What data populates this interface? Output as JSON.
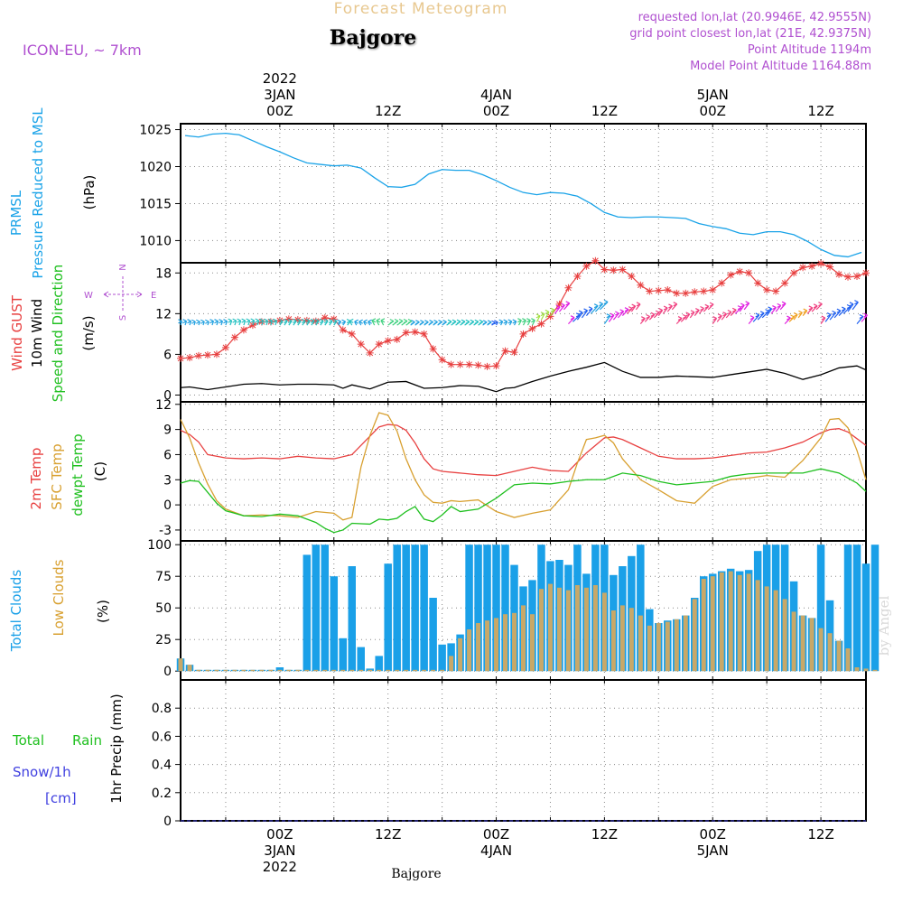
{
  "header": {
    "product": "Forecast Meteogram",
    "location": "Bajgore",
    "model": "ICON-EU, ~ 7km",
    "requested": "requested lon,lat (20.9946E, 42.9555N)",
    "grid_point": "grid point closest lon,lat (21E, 42.9375N)",
    "point_altitude": "Point Altitude 1194m",
    "model_altitude": "Model Point Altitude 1164.88m"
  },
  "footer": {
    "location": "Bajgore",
    "watermark": "by Angel"
  },
  "time_axis": {
    "top_labels": [
      {
        "line1": "2022",
        "line2": "3JAN",
        "line3": "00Z",
        "hour": 0
      },
      {
        "line1": "",
        "line2": "",
        "line3": "12Z",
        "hour": 12
      },
      {
        "line1": "",
        "line2": "4JAN",
        "line3": "00Z",
        "hour": 24
      },
      {
        "line1": "",
        "line2": "",
        "line3": "12Z",
        "hour": 36
      },
      {
        "line1": "",
        "line2": "5JAN",
        "line3": "00Z",
        "hour": 48
      },
      {
        "line1": "",
        "line2": "",
        "line3": "12Z",
        "hour": 60
      }
    ],
    "bottom_labels": [
      {
        "line1": "00Z",
        "line2": "3JAN",
        "line3": "2022",
        "hour": 0
      },
      {
        "line1": "12Z",
        "line2": "",
        "line3": "",
        "hour": 12
      },
      {
        "line1": "00Z",
        "line2": "4JAN",
        "line3": "",
        "hour": 24
      },
      {
        "line1": "12Z",
        "line2": "",
        "line3": "",
        "hour": 36
      },
      {
        "line1": "00Z",
        "line2": "5JAN",
        "line3": "",
        "hour": 48
      },
      {
        "line1": "12Z",
        "line2": "",
        "line3": "",
        "hour": 60
      }
    ],
    "range_hours": [
      -11,
      65
    ]
  },
  "panel_labels": {
    "pressure": {
      "l1": "PRMSL",
      "l2": "Pressure Reduced to MSL",
      "unit": "(hPa)"
    },
    "wind": {
      "l1": "Wind GUST",
      "l2": "10m Wind",
      "l3": "Speed and Direction",
      "unit": "(m/s)",
      "compass_n": "N",
      "compass_s": "S",
      "compass_w": "W",
      "compass_e": "E"
    },
    "temp": {
      "l1": "2m Temp",
      "l2": "SFC Temp",
      "l3": "dewpt Temp",
      "unit": "(C)"
    },
    "clouds": {
      "l1": "Total Clouds",
      "l2": "Low Clouds",
      "unit": "(%)"
    },
    "precip": {
      "l1": "Total",
      "l1b": "Rain",
      "l2": "Snow/1h",
      "l3": "[cm]",
      "unit": "1hr Precip (mm)"
    }
  },
  "colors": {
    "pressure": "#1aa3e8",
    "gust": "#e84040",
    "wind": "#000000",
    "temp2m": "#e84040",
    "sfc": "#d8a030",
    "dewpt": "#20c020",
    "total_clouds": "#1aa0e8",
    "low_clouds": "#c8a868",
    "rain": "#20c020",
    "snow": "#4040e0",
    "title": "#e8c890",
    "info": "#b050d0"
  },
  "chart_data": [
    {
      "type": "line",
      "title": "",
      "ylabel": "PRMSL Pressure Reduced to MSL (hPa)",
      "ylim": [
        1007,
        1025.8
      ],
      "yticks": [
        1010,
        1015,
        1020,
        1025
      ],
      "series": [
        {
          "name": "PRMSL",
          "x": [
            -10.5,
            -9,
            -7.5,
            -6,
            -4.5,
            -3,
            -1.5,
            0,
            1.5,
            3,
            4.5,
            6,
            7.5,
            9,
            10.5,
            12,
            13.5,
            15,
            16.5,
            18,
            19.5,
            21,
            22.5,
            24,
            25.5,
            27,
            28.5,
            30,
            31.5,
            33,
            34.5,
            36,
            37.5,
            39,
            40.5,
            42,
            43.5,
            45,
            46.5,
            48,
            49.5,
            51,
            52.5,
            54,
            55.5,
            57,
            58.5,
            60,
            61.5,
            63,
            64.5
          ],
          "values": [
            1024.2,
            1024.0,
            1024.4,
            1024.5,
            1024.3,
            1023.5,
            1022.7,
            1022.0,
            1021.2,
            1020.5,
            1020.3,
            1020.1,
            1020.2,
            1019.8,
            1018.5,
            1017.3,
            1017.2,
            1017.6,
            1019.0,
            1019.6,
            1019.5,
            1019.5,
            1018.9,
            1018.1,
            1017.2,
            1016.5,
            1016.2,
            1016.5,
            1016.4,
            1016.0,
            1015.0,
            1013.8,
            1013.2,
            1013.1,
            1013.2,
            1013.2,
            1013.1,
            1013.0,
            1012.3,
            1011.9,
            1011.6,
            1011.0,
            1010.8,
            1011.2,
            1011.2,
            1010.8,
            1009.9,
            1008.8,
            1008.0,
            1007.8,
            1008.4
          ]
        }
      ]
    },
    {
      "type": "line",
      "title": "",
      "ylabel": "Wind GUST / 10m Wind Speed and Direction (m/s)",
      "ylim": [
        -1,
        19.5
      ],
      "yticks": [
        0,
        6,
        12,
        18
      ],
      "series": [
        {
          "name": "Wind GUST",
          "x": [
            -11,
            -10,
            -9,
            -8,
            -7,
            -6,
            -5,
            -4,
            -3,
            -2,
            -1,
            0,
            1,
            2,
            3,
            4,
            5,
            6,
            7,
            8,
            9,
            10,
            11,
            12,
            13,
            14,
            15,
            16,
            17,
            18,
            19,
            20,
            21,
            22,
            23,
            24,
            25,
            26,
            27,
            28,
            29,
            30,
            31,
            32,
            33,
            34,
            35,
            36,
            37,
            38,
            39,
            40,
            41,
            42,
            43,
            44,
            45,
            46,
            47,
            48,
            49,
            50,
            51,
            52,
            53,
            54,
            55,
            56,
            57,
            58,
            59,
            60,
            61,
            62,
            63,
            64,
            65
          ],
          "values": [
            5.4,
            5.5,
            5.8,
            5.9,
            6.0,
            7.0,
            8.5,
            9.6,
            10.3,
            10.8,
            10.8,
            11.0,
            11.2,
            11.1,
            11.0,
            10.9,
            11.4,
            11.2,
            9.6,
            9.0,
            7.5,
            6.2,
            7.5,
            8.0,
            8.2,
            9.2,
            9.3,
            9.0,
            6.8,
            5.2,
            4.5,
            4.5,
            4.5,
            4.4,
            4.2,
            4.3,
            6.5,
            6.3,
            9.0,
            9.8,
            10.5,
            11.6,
            13.4,
            15.8,
            17.5,
            19.0,
            19.8,
            18.5,
            18.4,
            18.5,
            17.5,
            16.2,
            15.3,
            15.4,
            15.5,
            15.0,
            15.0,
            15.2,
            15.3,
            15.5,
            16.5,
            17.7,
            18.2,
            18.0,
            16.5,
            15.5,
            15.3,
            16.5,
            18.0,
            18.8,
            19.0,
            19.4,
            18.9,
            17.8,
            17.4,
            17.5,
            18.0
          ]
        },
        {
          "name": "10m Wind",
          "x": [
            -11,
            -10,
            -8,
            -6,
            -4,
            -2,
            0,
            2,
            4,
            6,
            7,
            8,
            10,
            12,
            14,
            16,
            18,
            20,
            22,
            23,
            24,
            25,
            26,
            28,
            30,
            32,
            34,
            36,
            38,
            40,
            42,
            44,
            46,
            48,
            50,
            52,
            54,
            56,
            58,
            60,
            62,
            64,
            65
          ],
          "values": [
            1.1,
            1.2,
            0.8,
            1.2,
            1.6,
            1.7,
            1.5,
            1.6,
            1.6,
            1.5,
            1.0,
            1.5,
            0.9,
            1.9,
            2.0,
            1.0,
            1.1,
            1.4,
            1.3,
            0.9,
            0.5,
            1.0,
            1.1,
            2.0,
            2.8,
            3.5,
            4.1,
            4.8,
            3.5,
            2.6,
            2.6,
            2.8,
            2.7,
            2.6,
            3.0,
            3.4,
            3.8,
            3.2,
            2.3,
            3.0,
            4.0,
            4.3,
            3.7
          ]
        }
      ]
    },
    {
      "type": "line",
      "title": "",
      "ylabel": "2m Temp / SFC Temp / dewpt Temp (C)",
      "ylim": [
        -4.3,
        12.3
      ],
      "yticks": [
        -3,
        0,
        3,
        6,
        9,
        12
      ],
      "series": [
        {
          "name": "2m Temp",
          "x": [
            -11,
            -10,
            -9,
            -8,
            -6,
            -4,
            -2,
            0,
            2,
            4,
            6,
            8,
            10,
            11,
            12,
            13,
            14,
            15,
            16,
            17,
            18,
            20,
            22,
            24,
            26,
            28,
            30,
            32,
            34,
            36,
            37,
            38,
            40,
            42,
            44,
            46,
            48,
            50,
            52,
            54,
            56,
            58,
            60,
            61,
            62,
            63,
            64,
            65
          ],
          "values": [
            8.9,
            8.4,
            7.5,
            6.0,
            5.6,
            5.5,
            5.6,
            5.5,
            5.8,
            5.6,
            5.5,
            6.0,
            8.2,
            9.3,
            9.6,
            9.5,
            8.9,
            7.4,
            5.5,
            4.3,
            4.0,
            3.8,
            3.6,
            3.5,
            4.0,
            4.5,
            4.1,
            4.0,
            6.2,
            8.0,
            8.1,
            7.8,
            6.8,
            5.8,
            5.5,
            5.5,
            5.6,
            5.9,
            6.2,
            6.3,
            6.8,
            7.5,
            8.6,
            9.0,
            9.1,
            8.7,
            7.9,
            7.1
          ]
        },
        {
          "name": "SFC Temp",
          "x": [
            -11,
            -10,
            -9,
            -8,
            -7,
            -6,
            -4,
            -2,
            0,
            2,
            4,
            6,
            7,
            8,
            9,
            10,
            11,
            12,
            13,
            14,
            15,
            16,
            17,
            18,
            19,
            20,
            22,
            24,
            26,
            28,
            30,
            32,
            33,
            34,
            35,
            36,
            37,
            38,
            40,
            42,
            44,
            46,
            48,
            50,
            52,
            54,
            56,
            58,
            60,
            61,
            62,
            63,
            64,
            65
          ],
          "values": [
            10.2,
            8.0,
            5.0,
            2.5,
            0.5,
            -0.5,
            -1.3,
            -1.2,
            -1.3,
            -1.5,
            -0.8,
            -1.0,
            -1.8,
            -1.5,
            4.5,
            8.3,
            11.0,
            10.7,
            8.8,
            5.5,
            3.0,
            1.2,
            0.3,
            0.2,
            0.5,
            0.4,
            0.6,
            -0.8,
            -1.5,
            -1.0,
            -0.6,
            1.8,
            5.0,
            7.8,
            8.0,
            8.3,
            7.4,
            5.5,
            3.0,
            1.8,
            0.5,
            0.2,
            2.2,
            3.0,
            3.2,
            3.5,
            3.3,
            5.3,
            8.0,
            10.2,
            10.3,
            9.2,
            6.5,
            3.0
          ]
        },
        {
          "name": "dewpt Temp",
          "x": [
            -11,
            -10,
            -9,
            -8,
            -7,
            -6,
            -4,
            -2,
            0,
            2,
            4,
            5,
            6,
            7,
            8,
            10,
            11,
            12,
            13,
            14,
            15,
            16,
            17,
            18,
            19,
            20,
            22,
            24,
            26,
            28,
            30,
            32,
            34,
            36,
            38,
            40,
            42,
            44,
            46,
            48,
            50,
            52,
            54,
            56,
            58,
            60,
            62,
            64,
            65
          ],
          "values": [
            2.6,
            2.9,
            2.8,
            1.5,
            0.2,
            -0.7,
            -1.3,
            -1.4,
            -1.1,
            -1.3,
            -2.1,
            -2.8,
            -3.3,
            -3.0,
            -2.2,
            -2.3,
            -1.7,
            -1.8,
            -1.6,
            -0.8,
            -0.2,
            -1.7,
            -2.0,
            -1.2,
            -0.2,
            -0.8,
            -0.5,
            0.8,
            2.4,
            2.6,
            2.5,
            2.8,
            3.0,
            3.0,
            3.8,
            3.5,
            2.8,
            2.4,
            2.6,
            2.8,
            3.4,
            3.7,
            3.8,
            3.8,
            3.8,
            4.3,
            3.8,
            2.6,
            1.6
          ]
        }
      ]
    },
    {
      "type": "bar",
      "title": "",
      "ylabel": "Total Clouds / Low Clouds (%)",
      "ylim": [
        -7,
        103
      ],
      "yticks": [
        0,
        25,
        50,
        75,
        100
      ],
      "x_start_hour": -11,
      "x_step_hours": 1,
      "series": [
        {
          "name": "Total Clouds",
          "values": [
            10,
            5,
            1,
            1,
            1,
            1,
            1,
            1,
            1,
            1,
            1,
            3,
            1,
            1,
            92,
            100,
            100,
            75,
            26,
            83,
            19,
            2,
            12,
            85,
            100,
            100,
            100,
            100,
            58,
            21,
            22,
            29,
            100,
            100,
            100,
            100,
            100,
            84,
            67,
            72,
            100,
            87,
            88,
            84,
            100,
            77,
            100,
            100,
            76,
            83,
            91,
            100,
            49,
            38,
            40,
            41,
            44,
            58,
            75,
            77,
            79,
            81,
            79,
            80,
            95,
            100,
            100,
            100,
            71,
            44,
            42,
            100,
            56,
            24,
            100,
            100,
            85,
            100
          ]
        },
        {
          "name": "Low Clouds",
          "values": [
            10,
            5,
            1,
            1,
            1,
            1,
            1,
            1,
            1,
            1,
            1,
            1,
            1,
            1,
            1,
            1,
            1,
            1,
            1,
            1,
            1,
            1,
            1,
            1,
            1,
            1,
            1,
            1,
            1,
            1,
            12,
            26,
            33,
            38,
            40,
            42,
            45,
            46,
            52,
            45,
            65,
            69,
            66,
            64,
            68,
            66,
            68,
            62,
            48,
            52,
            50,
            44,
            36,
            38,
            39,
            41,
            44,
            57,
            73,
            75,
            78,
            79,
            76,
            77,
            72,
            67,
            64,
            57,
            47,
            44,
            42,
            34,
            30,
            24,
            18,
            3,
            2,
            1
          ]
        }
      ]
    },
    {
      "type": "line",
      "title": "",
      "ylabel": "1hr Precip (mm)",
      "ylim": [
        0,
        1.0
      ],
      "yticks": [
        0,
        0.2,
        0.4,
        0.6,
        0.8
      ],
      "series": [
        {
          "name": "Total Rain",
          "x": [
            -11,
            65
          ],
          "values": [
            0,
            0
          ]
        },
        {
          "name": "Snow/1h",
          "x": [
            -11,
            65
          ],
          "values": [
            0,
            0
          ]
        }
      ]
    }
  ]
}
